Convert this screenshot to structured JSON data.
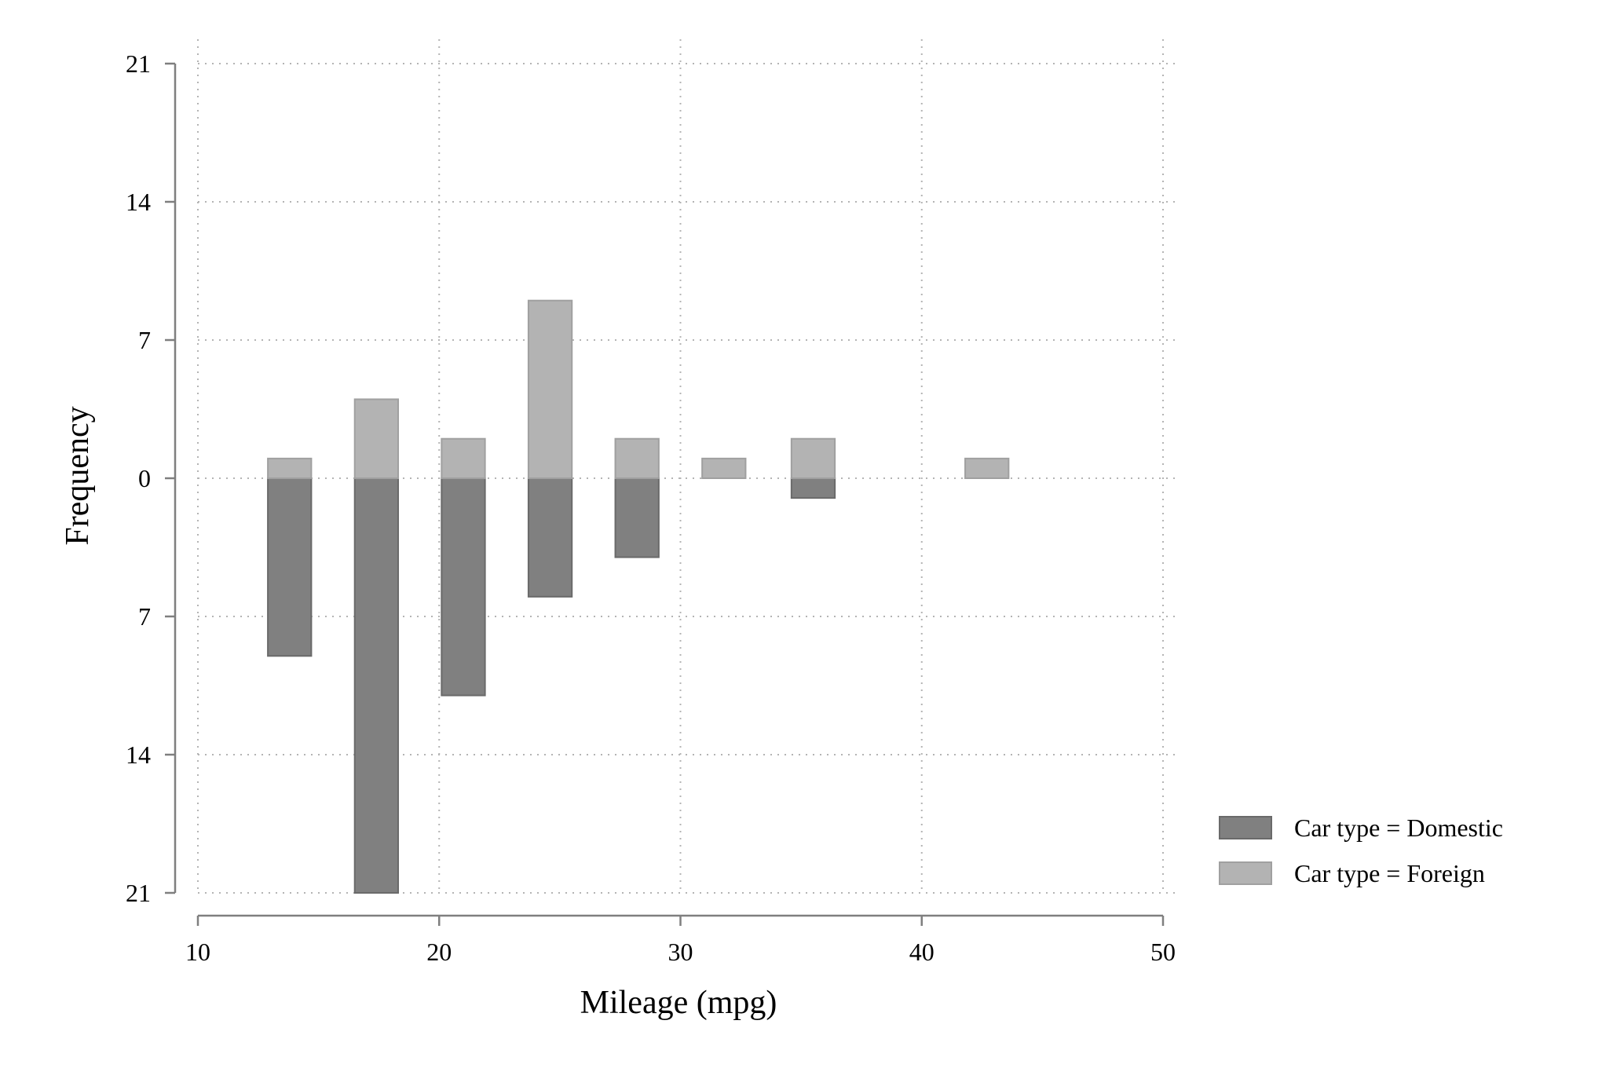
{
  "chart_data": {
    "type": "bar",
    "xlabel": "Mileage (mpg)",
    "ylabel": "Frequency",
    "xlim": [
      10,
      50
    ],
    "x_ticks": [
      10,
      20,
      30,
      40,
      50
    ],
    "ylim": [
      -21,
      21
    ],
    "y_ticks": [
      21,
      14,
      7,
      0,
      -7,
      -14,
      -21
    ],
    "y_tick_labels": [
      "21",
      "14",
      "7",
      "0",
      "7",
      "14",
      "21"
    ],
    "bar_width": 1.8,
    "grid": true,
    "legend_position": "right",
    "series": [
      {
        "name": "Car type = Domestic",
        "direction": "down",
        "color": "#808080",
        "x": [
          13.8,
          17.4,
          21.0,
          24.6,
          28.2,
          35.5
        ],
        "values": [
          9,
          21,
          11,
          6,
          4,
          1
        ]
      },
      {
        "name": "Car type = Foreign",
        "direction": "up",
        "color": "#b3b3b3",
        "x": [
          13.8,
          17.4,
          21.0,
          24.6,
          28.2,
          31.8,
          35.5,
          42.7
        ],
        "values": [
          1,
          4,
          2,
          9,
          2,
          1,
          2,
          1
        ]
      }
    ]
  }
}
